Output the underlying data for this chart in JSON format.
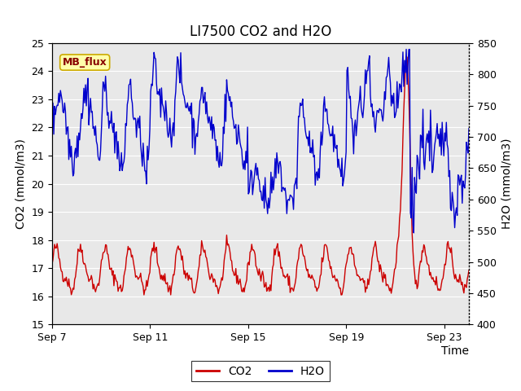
{
  "title": "LI7500 CO2 and H2O",
  "xlabel": "Time",
  "ylabel_left": "CO2 (mmol/m3)",
  "ylabel_right": "H2O (mmol/m3)",
  "ylim_left": [
    15.0,
    25.0
  ],
  "ylim_right": [
    400,
    850
  ],
  "yticks_left": [
    15.0,
    16.0,
    17.0,
    18.0,
    19.0,
    20.0,
    21.0,
    22.0,
    23.0,
    24.0,
    25.0
  ],
  "yticks_right": [
    400,
    450,
    500,
    550,
    600,
    650,
    700,
    750,
    800,
    850
  ],
  "xtick_labels": [
    "Sep 7",
    "Sep 11",
    "Sep 15",
    "Sep 19",
    "Sep 23"
  ],
  "xtick_positions": [
    0,
    4,
    8,
    12,
    16
  ],
  "co2_color": "#cc0000",
  "h2o_color": "#0000cc",
  "fig_bg_color": "#ffffff",
  "plot_bg_color": "#e8e8e8",
  "grid_color": "#ffffff",
  "annotation_text": "MB_flux",
  "annotation_bg": "#ffffaa",
  "annotation_border": "#ccaa00",
  "annotation_text_color": "#880000",
  "legend_co2": "CO2",
  "legend_h2o": "H2O",
  "title_fontsize": 12,
  "axis_fontsize": 10,
  "tick_fontsize": 9,
  "linewidth": 1.0
}
